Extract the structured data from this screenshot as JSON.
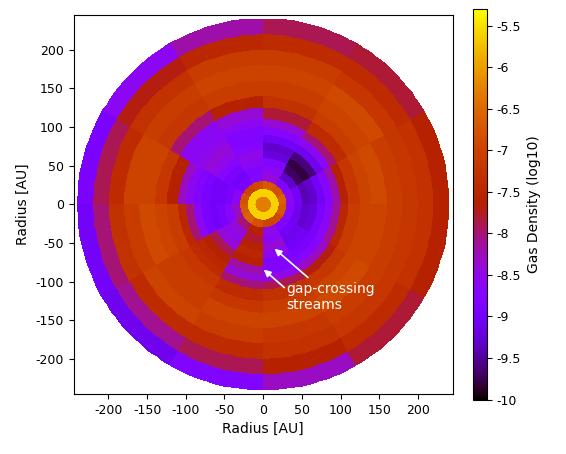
{
  "chart_data": {
    "type": "heatmap",
    "xlabel": "Radius [AU]",
    "ylabel": "Radius [AU]",
    "xlim": [
      -245,
      245
    ],
    "ylim": [
      -245,
      245
    ],
    "xticks": [
      -200,
      -150,
      -100,
      -50,
      0,
      50,
      100,
      150,
      200
    ],
    "yticks": [
      -200,
      -150,
      -100,
      -50,
      0,
      50,
      100,
      150,
      200
    ],
    "colorbar": {
      "label": "Gas Density (log10)",
      "range": [
        -10,
        -5.3
      ],
      "ticks": [
        -10,
        -9.5,
        -9,
        -8.5,
        -8,
        -7.5,
        -7,
        -6.5,
        -6,
        -5.5
      ]
    },
    "annotation": "gap-crossing\nstreams",
    "cells": {
      "r_edges": [
        0,
        10,
        20,
        30,
        40,
        50,
        60,
        70,
        80,
        90,
        100,
        110,
        125,
        140,
        160,
        180,
        200,
        220,
        240
      ],
      "theta_edges": [
        0,
        30,
        60,
        90,
        120,
        150,
        180,
        210,
        240,
        270,
        300,
        330,
        360
      ],
      "values": [
        [
          -6.3,
          -6.3,
          -6.3,
          -6.3,
          -6.3,
          -6.3,
          -6.3,
          -6.3,
          -6.3,
          -6.3,
          -6.3,
          -6.3
        ],
        [
          -5.6,
          -5.6,
          -5.6,
          -5.6,
          -5.6,
          -5.6,
          -5.6,
          -5.6,
          -5.6,
          -5.6,
          -5.6,
          -5.6
        ],
        [
          -6.6,
          -6.8,
          -6.7,
          -6.9,
          -7.0,
          -6.8,
          -6.7,
          -6.6,
          -6.8,
          -7.0,
          -6.9,
          -6.7
        ],
        [
          -8.6,
          -8.8,
          -8.4,
          -8.7,
          -8.9,
          -8.6,
          -8.3,
          -8.0,
          -7.6,
          -8.5,
          -8.8,
          -8.7
        ],
        [
          -9.0,
          -9.3,
          -8.6,
          -8.8,
          -9.0,
          -8.9,
          -8.7,
          -8.4,
          -7.8,
          -8.6,
          -9.0,
          -9.1
        ],
        [
          -9.4,
          -9.7,
          -8.8,
          -8.6,
          -8.9,
          -9.0,
          -8.9,
          -8.5,
          -7.6,
          -8.4,
          -9.1,
          -9.3
        ],
        [
          -9.3,
          -9.8,
          -9.2,
          -8.5,
          -8.7,
          -9.0,
          -9.0,
          -8.4,
          -7.5,
          -8.6,
          -9.0,
          -9.2
        ],
        [
          -9.0,
          -9.6,
          -9.3,
          -8.7,
          -8.5,
          -8.9,
          -8.9,
          -7.9,
          -7.6,
          -8.8,
          -8.9,
          -8.9
        ],
        [
          -8.7,
          -9.1,
          -9.0,
          -8.8,
          -8.4,
          -8.8,
          -8.6,
          -7.6,
          -8.2,
          -8.8,
          -8.7,
          -8.6
        ],
        [
          -8.2,
          -8.6,
          -8.7,
          -8.8,
          -8.5,
          -8.6,
          -8.0,
          -7.5,
          -8.4,
          -8.5,
          -8.3,
          -8.1
        ],
        [
          -7.6,
          -8.0,
          -8.4,
          -8.6,
          -8.6,
          -8.3,
          -7.5,
          -7.4,
          -8.0,
          -7.9,
          -7.7,
          -7.5
        ],
        [
          -7.2,
          -7.4,
          -7.8,
          -8.4,
          -8.6,
          -7.6,
          -7.1,
          -7.2,
          -7.4,
          -7.3,
          -7.2,
          -7.1
        ],
        [
          -7.0,
          -7.1,
          -7.3,
          -7.6,
          -8.0,
          -7.2,
          -7.0,
          -7.1,
          -7.2,
          -7.1,
          -7.0,
          -7.0
        ],
        [
          -6.9,
          -7.0,
          -7.1,
          -7.1,
          -7.2,
          -7.0,
          -6.9,
          -7.1,
          -7.0,
          -7.0,
          -6.9,
          -7.0
        ],
        [
          -7.1,
          -6.9,
          -7.0,
          -7.0,
          -7.1,
          -7.0,
          -7.1,
          -7.0,
          -7.1,
          -7.2,
          -7.1,
          -7.1
        ],
        [
          -7.2,
          -7.2,
          -7.1,
          -7.1,
          -7.3,
          -7.4,
          -7.3,
          -7.4,
          -7.4,
          -7.3,
          -7.2,
          -7.2
        ],
        [
          -7.3,
          -7.4,
          -7.4,
          -7.5,
          -7.7,
          -7.9,
          -8.0,
          -8.1,
          -7.9,
          -7.6,
          -7.4,
          -7.3
        ],
        [
          -7.6,
          -7.8,
          -7.9,
          -8.2,
          -8.6,
          -8.9,
          -9.0,
          -9.1,
          -8.8,
          -8.3,
          -7.8,
          -7.6
        ]
      ]
    }
  }
}
